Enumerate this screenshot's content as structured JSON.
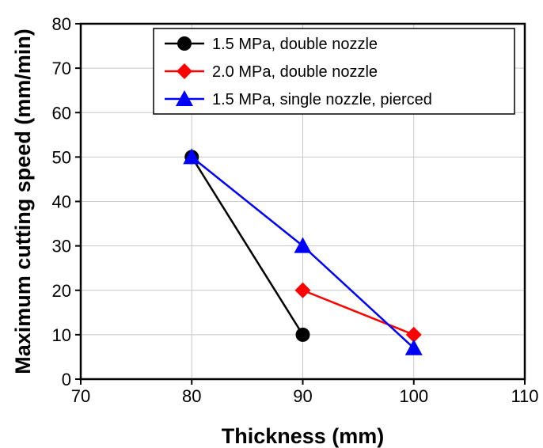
{
  "chart_data": {
    "type": "line",
    "xlabel": "Thickness (mm)",
    "ylabel": "Maximum cutting speed (mm/min)",
    "xlim": [
      70,
      110
    ],
    "ylim": [
      0,
      80
    ],
    "xticks": [
      70,
      80,
      90,
      100,
      110
    ],
    "yticks": [
      0,
      10,
      20,
      30,
      40,
      50,
      60,
      70,
      80
    ],
    "grid": true,
    "legend_position": "top-right",
    "series": [
      {
        "name": "1.5 MPa, double nozzle",
        "color": "#000000",
        "marker": "circle",
        "x": [
          80,
          90
        ],
        "y": [
          50,
          10
        ]
      },
      {
        "name": "2.0 MPa, double nozzle",
        "color": "#ff0000",
        "marker": "diamond",
        "x": [
          90,
          100
        ],
        "y": [
          20,
          10
        ]
      },
      {
        "name": "1.5 MPa, single nozzle, pierced",
        "color": "#0000ff",
        "marker": "triangle",
        "x": [
          80,
          90,
          100
        ],
        "y": [
          50,
          30,
          7
        ]
      }
    ]
  }
}
